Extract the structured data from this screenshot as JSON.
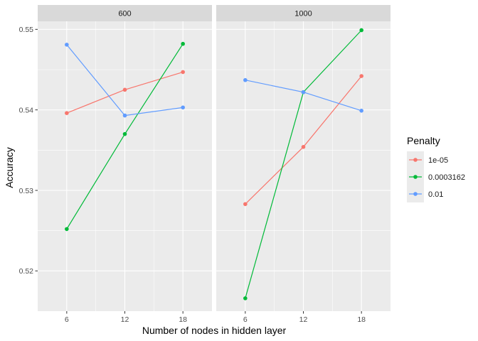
{
  "chart_data": {
    "type": "line",
    "xlabel": "Number of nodes in hidden layer",
    "ylabel": "Accuracy",
    "x_ticks": [
      6,
      12,
      18
    ],
    "y_ticks": [
      0.52,
      0.53,
      0.54,
      0.55
    ],
    "y_tick_labels": [
      "0.52",
      "0.53",
      "0.54",
      "0.55"
    ],
    "xlim": [
      3,
      21
    ],
    "ylim": [
      0.515,
      0.551
    ],
    "grid": true,
    "legend": {
      "title": "Penalty",
      "position": "right"
    },
    "series_styles": [
      {
        "name": "1e-05",
        "color": "#F8766D"
      },
      {
        "name": "0.0003162",
        "color": "#00BA38"
      },
      {
        "name": "0.01",
        "color": "#619CFF"
      }
    ],
    "panels": [
      {
        "label": "600",
        "series": [
          {
            "name": "1e-05",
            "x": [
              6,
              12,
              18
            ],
            "y": [
              0.5396,
              0.5425,
              0.5447
            ]
          },
          {
            "name": "0.0003162",
            "x": [
              6,
              12,
              18
            ],
            "y": [
              0.5252,
              0.537,
              0.5482
            ]
          },
          {
            "name": "0.01",
            "x": [
              6,
              12,
              18
            ],
            "y": [
              0.5481,
              0.5393,
              0.5403
            ]
          }
        ]
      },
      {
        "label": "1000",
        "series": [
          {
            "name": "1e-05",
            "x": [
              6,
              12,
              18
            ],
            "y": [
              0.5283,
              0.5354,
              0.5442
            ]
          },
          {
            "name": "0.0003162",
            "x": [
              6,
              12,
              18
            ],
            "y": [
              0.5166,
              0.5422,
              0.5499
            ]
          },
          {
            "name": "0.01",
            "x": [
              6,
              12,
              18
            ],
            "y": [
              0.5437,
              0.5422,
              0.5399
            ]
          }
        ]
      }
    ]
  }
}
